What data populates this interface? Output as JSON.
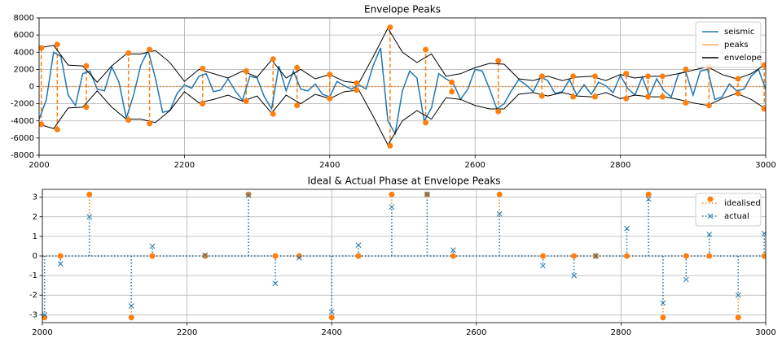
{
  "chart_data": [
    {
      "type": "line",
      "title": "Envelope Peaks",
      "xlim": [
        2000,
        3000
      ],
      "ylim": [
        -8000,
        8000
      ],
      "xticks": [
        2000,
        2200,
        2400,
        2600,
        2800,
        3000
      ],
      "yticks": [
        -8000,
        -6000,
        -4000,
        -2000,
        0,
        2000,
        4000,
        6000,
        8000
      ],
      "grid": true,
      "legend": "upper right",
      "series": [
        {
          "name": "seismic",
          "kind": "line",
          "color": "#1f77b4",
          "x": [
            2000,
            2010,
            2020,
            2030,
            2040,
            2050,
            2060,
            2070,
            2080,
            2090,
            2100,
            2110,
            2120,
            2130,
            2140,
            2150,
            2160,
            2170,
            2180,
            2190,
            2200,
            2210,
            2220,
            2230,
            2240,
            2250,
            2260,
            2270,
            2280,
            2290,
            2300,
            2310,
            2320,
            2330,
            2340,
            2350,
            2360,
            2370,
            2380,
            2390,
            2400,
            2410,
            2420,
            2430,
            2440,
            2450,
            2460,
            2470,
            2480,
            2490,
            2500,
            2510,
            2520,
            2530,
            2540,
            2550,
            2560,
            2570,
            2580,
            2590,
            2600,
            2610,
            2620,
            2630,
            2640,
            2650,
            2660,
            2670,
            2680,
            2690,
            2700,
            2710,
            2720,
            2730,
            2740,
            2750,
            2760,
            2770,
            2780,
            2790,
            2800,
            2810,
            2820,
            2830,
            2840,
            2850,
            2860,
            2870,
            2880,
            2890,
            2900,
            2910,
            2920,
            2930,
            2940,
            2950,
            2960,
            2970,
            2980,
            2990,
            3000
          ],
          "values": [
            -3800,
            -1500,
            4000,
            3500,
            -1000,
            -2200,
            1500,
            1800,
            -300,
            -500,
            2300,
            500,
            -3700,
            -1000,
            2500,
            4200,
            1000,
            -3000,
            -2800,
            -800,
            200,
            -200,
            1200,
            1500,
            -600,
            -400,
            900,
            -500,
            -1600,
            1200,
            1000,
            -1200,
            -2600,
            2400,
            -500,
            1800,
            -300,
            -500,
            300,
            -900,
            -1200,
            600,
            100,
            -300,
            200,
            -300,
            2500,
            4500,
            -4000,
            -5500,
            -500,
            1800,
            1000,
            -4000,
            -2500,
            1500,
            900,
            400,
            -1500,
            -300,
            2000,
            1800,
            -300,
            -2600,
            -2000,
            -500,
            800,
            200,
            -600,
            1100,
            700,
            -800,
            -600,
            800,
            -1000,
            200,
            -900,
            500,
            100,
            -700,
            1300,
            -200,
            -1000,
            1100,
            -1100,
            900,
            -500,
            -1200,
            1500,
            1700,
            -1000,
            1800,
            2000,
            -1500,
            -1200,
            300,
            -500,
            -300,
            1200,
            2000,
            -300
          ]
        },
        {
          "name": "peaks",
          "kind": "stem",
          "color": "#ff7f0e",
          "marker": "o",
          "dash": "5,3",
          "x": [
            2003,
            2025,
            2065,
            2123,
            2152,
            2225,
            2285,
            2322,
            2355,
            2400,
            2437,
            2483,
            2532,
            2568,
            2632,
            2692,
            2735,
            2765,
            2808,
            2838,
            2858,
            2890,
            2922,
            2962,
            2998
          ],
          "values": [
            4500,
            4900,
            2400,
            3900,
            4300,
            2100,
            1800,
            3200,
            2200,
            1400,
            400,
            6900,
            4300,
            500,
            3000,
            1200,
            1200,
            1200,
            1500,
            1200,
            1200,
            2000,
            2300,
            900,
            2500
          ],
          "lower": [
            -4400,
            -5000,
            -2400,
            -3900,
            -4300,
            -2000,
            -1700,
            -3200,
            -2200,
            -1400,
            -400,
            -6900,
            -4200,
            -600,
            -2900,
            -1100,
            -1200,
            -1200,
            -1400,
            -1200,
            -1200,
            -1900,
            -2200,
            -800,
            -2600
          ]
        },
        {
          "name": "envelope",
          "kind": "line",
          "color": "#000000",
          "x": [
            2000,
            2020,
            2040,
            2060,
            2080,
            2100,
            2120,
            2140,
            2160,
            2180,
            2200,
            2220,
            2240,
            2260,
            2280,
            2300,
            2320,
            2340,
            2360,
            2380,
            2400,
            2420,
            2440,
            2460,
            2480,
            2500,
            2520,
            2540,
            2560,
            2580,
            2600,
            2620,
            2640,
            2660,
            2680,
            2700,
            2720,
            2740,
            2760,
            2780,
            2800,
            2820,
            2840,
            2860,
            2880,
            2900,
            2920,
            2940,
            2960,
            2980,
            3000
          ],
          "values": [
            4500,
            4800,
            2500,
            2400,
            500,
            2400,
            3800,
            3800,
            4200,
            2800,
            600,
            2000,
            1500,
            1000,
            1800,
            1100,
            3100,
            1000,
            2000,
            900,
            1400,
            600,
            400,
            3500,
            6800,
            4000,
            2800,
            3800,
            1200,
            1500,
            2200,
            2700,
            2600,
            900,
            700,
            1200,
            700,
            1100,
            1200,
            700,
            1400,
            1000,
            1200,
            1200,
            1500,
            1900,
            2300,
            1400,
            900,
            1500,
            2600
          ],
          "lower": [
            -4400,
            -4900,
            -2500,
            -2400,
            -500,
            -2400,
            -3800,
            -3800,
            -4200,
            -2800,
            -600,
            -1900,
            -1500,
            -1000,
            -1700,
            -1100,
            -3100,
            -1000,
            -2000,
            -900,
            -1400,
            -600,
            -400,
            -3500,
            -6800,
            -4000,
            -2800,
            -3800,
            -1300,
            -1500,
            -2200,
            -2600,
            -2600,
            -900,
            -700,
            -1100,
            -700,
            -1100,
            -1200,
            -700,
            -1400,
            -1000,
            -1200,
            -1200,
            -1500,
            -1900,
            -2200,
            -1400,
            -800,
            -1500,
            -2600
          ]
        }
      ]
    },
    {
      "type": "stem",
      "title": "Ideal & Actual Phase at Envelope Peaks",
      "xlim": [
        2000,
        3000
      ],
      "ylim": [
        -3.4,
        3.4
      ],
      "xticks": [
        2000,
        2200,
        2400,
        2600,
        2800,
        3000
      ],
      "yticks": [
        -3,
        -2,
        -1,
        0,
        1,
        2,
        3
      ],
      "grid": true,
      "legend": "upper right",
      "series": [
        {
          "name": "idealised",
          "kind": "stem",
          "color": "#ff7f0e",
          "marker": "o",
          "dash": "1.5,2.5",
          "x": [
            2003,
            2025,
            2065,
            2123,
            2152,
            2225,
            2285,
            2322,
            2355,
            2400,
            2437,
            2483,
            2532,
            2568,
            2632,
            2692,
            2735,
            2765,
            2808,
            2838,
            2858,
            2890,
            2922,
            2962,
            2998
          ],
          "values": [
            -3.14,
            0,
            3.14,
            -3.14,
            0,
            0,
            3.14,
            0,
            0,
            -3.14,
            0,
            3.14,
            3.14,
            0,
            3.14,
            0,
            0,
            0,
            0,
            3.14,
            -3.14,
            0,
            0,
            -3.14,
            0
          ]
        },
        {
          "name": "actual",
          "kind": "stem",
          "color": "#1f77b4",
          "marker": "x",
          "dash": "1.5,2.5",
          "x": [
            2003,
            2025,
            2065,
            2123,
            2152,
            2225,
            2285,
            2322,
            2355,
            2400,
            2437,
            2483,
            2532,
            2568,
            2632,
            2692,
            2735,
            2765,
            2808,
            2838,
            2858,
            2890,
            2922,
            2962,
            2998
          ],
          "values": [
            -3.0,
            -0.4,
            2.0,
            -2.55,
            0.5,
            0.05,
            3.1,
            -1.4,
            -0.1,
            -2.85,
            0.55,
            2.5,
            3.15,
            0.3,
            2.15,
            -0.5,
            -1.0,
            0.0,
            1.4,
            2.9,
            -2.4,
            -1.2,
            1.1,
            -2.0,
            1.15
          ]
        }
      ]
    }
  ]
}
